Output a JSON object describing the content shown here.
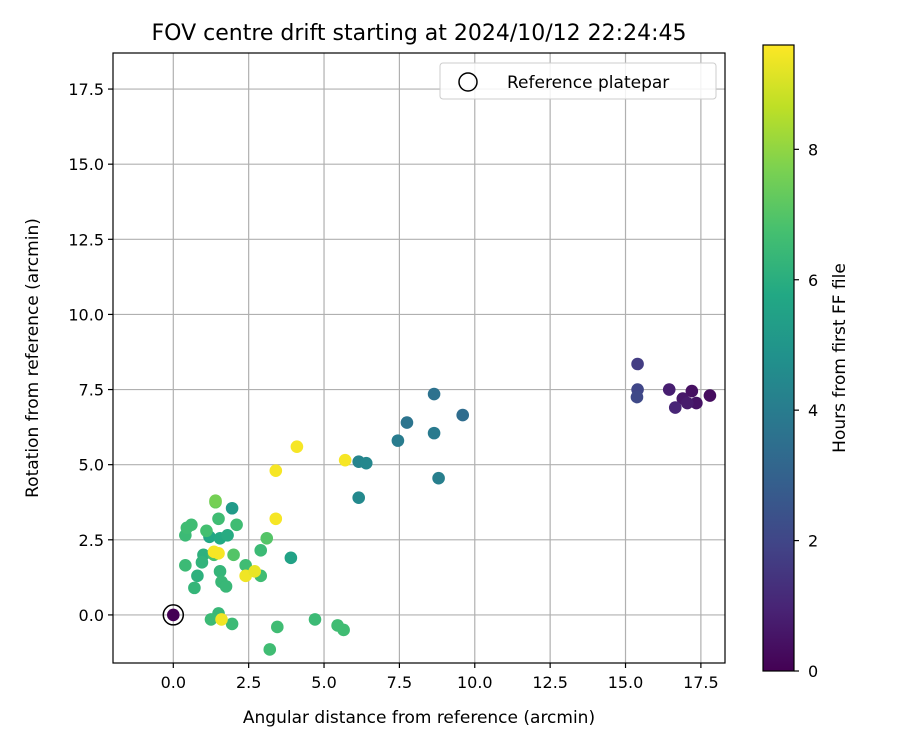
{
  "chart_data": {
    "type": "scatter",
    "title": "FOV centre drift starting at 2024/10/12 22:24:45",
    "xlabel": "Angular distance from reference (arcmin)",
    "ylabel": "Rotation from reference (arcmin)",
    "xlim": [
      -2.0,
      18.3
    ],
    "ylim": [
      -1.6,
      18.7
    ],
    "xticks": [
      0.0,
      2.5,
      5.0,
      7.5,
      10.0,
      12.5,
      15.0,
      17.5
    ],
    "xtick_labels": [
      "0.0",
      "2.5",
      "5.0",
      "7.5",
      "10.0",
      "12.5",
      "15.0",
      "17.5"
    ],
    "yticks": [
      0.0,
      2.5,
      5.0,
      7.5,
      10.0,
      12.5,
      15.0,
      17.5
    ],
    "ytick_labels": [
      "0.0",
      "2.5",
      "5.0",
      "7.5",
      "10.0",
      "12.5",
      "15.0",
      "17.5"
    ],
    "grid": true,
    "legend": {
      "position": "top-right",
      "entries": [
        "Reference platepar"
      ]
    },
    "reference_point": {
      "x": 0.0,
      "y": 0.0,
      "label": "Reference platepar"
    },
    "colorbar": {
      "label": "Hours from first FF file",
      "colormap": "viridis",
      "range": [
        0,
        9.6
      ],
      "ticks": [
        0,
        2,
        4,
        6,
        8
      ],
      "tick_labels": [
        "0",
        "2",
        "4",
        "6",
        "8"
      ]
    },
    "points": [
      {
        "x": 0.0,
        "y": 0.0,
        "c": 0.0
      },
      {
        "x": 17.8,
        "y": 7.3,
        "c": 0.3
      },
      {
        "x": 17.2,
        "y": 7.45,
        "c": 0.4
      },
      {
        "x": 17.35,
        "y": 7.05,
        "c": 0.5
      },
      {
        "x": 16.9,
        "y": 7.2,
        "c": 0.6
      },
      {
        "x": 17.05,
        "y": 7.05,
        "c": 0.7
      },
      {
        "x": 16.45,
        "y": 7.5,
        "c": 0.8
      },
      {
        "x": 16.65,
        "y": 6.9,
        "c": 1.0
      },
      {
        "x": 15.4,
        "y": 8.35,
        "c": 1.7
      },
      {
        "x": 15.4,
        "y": 7.5,
        "c": 2.0
      },
      {
        "x": 15.38,
        "y": 7.25,
        "c": 2.1
      },
      {
        "x": 9.6,
        "y": 6.65,
        "c": 3.4
      },
      {
        "x": 8.65,
        "y": 7.35,
        "c": 3.6
      },
      {
        "x": 7.75,
        "y": 6.4,
        "c": 3.7
      },
      {
        "x": 8.65,
        "y": 6.05,
        "c": 3.9
      },
      {
        "x": 7.45,
        "y": 5.8,
        "c": 4.0
      },
      {
        "x": 8.8,
        "y": 4.55,
        "c": 4.1
      },
      {
        "x": 6.15,
        "y": 5.1,
        "c": 4.3
      },
      {
        "x": 6.4,
        "y": 5.05,
        "c": 4.4
      },
      {
        "x": 6.15,
        "y": 3.9,
        "c": 4.5
      },
      {
        "x": 1.95,
        "y": 3.55,
        "c": 5.2
      },
      {
        "x": 3.9,
        "y": 1.9,
        "c": 5.5
      },
      {
        "x": 1.2,
        "y": 2.6,
        "c": 5.7
      },
      {
        "x": 1.55,
        "y": 2.55,
        "c": 5.8
      },
      {
        "x": 1.8,
        "y": 2.65,
        "c": 5.9
      },
      {
        "x": 1.45,
        "y": 2.05,
        "c": 6.0
      },
      {
        "x": 1.0,
        "y": 2.0,
        "c": 6.1
      },
      {
        "x": 0.95,
        "y": 1.75,
        "c": 6.2
      },
      {
        "x": 0.8,
        "y": 1.3,
        "c": 6.1
      },
      {
        "x": 0.7,
        "y": 0.9,
        "c": 6.3
      },
      {
        "x": 1.55,
        "y": 1.45,
        "c": 6.3
      },
      {
        "x": 1.6,
        "y": 1.1,
        "c": 6.4
      },
      {
        "x": 1.75,
        "y": 0.95,
        "c": 6.4
      },
      {
        "x": 1.5,
        "y": 0.05,
        "c": 6.4
      },
      {
        "x": 1.25,
        "y": -0.15,
        "c": 6.5
      },
      {
        "x": 1.95,
        "y": -0.3,
        "c": 6.5
      },
      {
        "x": 2.1,
        "y": 3.0,
        "c": 6.6
      },
      {
        "x": 2.4,
        "y": 1.65,
        "c": 6.6
      },
      {
        "x": 2.9,
        "y": 2.15,
        "c": 6.5
      },
      {
        "x": 2.9,
        "y": 1.3,
        "c": 6.6
      },
      {
        "x": 3.1,
        "y": 2.55,
        "c": 7.0
      },
      {
        "x": 3.45,
        "y": -0.4,
        "c": 6.6
      },
      {
        "x": 3.2,
        "y": -1.15,
        "c": 6.6
      },
      {
        "x": 4.7,
        "y": -0.15,
        "c": 6.5
      },
      {
        "x": 5.45,
        "y": -0.35,
        "c": 6.6
      },
      {
        "x": 5.65,
        "y": -0.5,
        "c": 6.6
      },
      {
        "x": 0.4,
        "y": 1.65,
        "c": 6.5
      },
      {
        "x": 0.4,
        "y": 2.65,
        "c": 6.5
      },
      {
        "x": 0.45,
        "y": 2.9,
        "c": 6.6
      },
      {
        "x": 0.6,
        "y": 3.0,
        "c": 6.6
      },
      {
        "x": 1.5,
        "y": 3.2,
        "c": 6.6
      },
      {
        "x": 1.1,
        "y": 2.8,
        "c": 6.7
      },
      {
        "x": 1.35,
        "y": 2.0,
        "c": 6.8
      },
      {
        "x": 2.0,
        "y": 2.0,
        "c": 7.0
      },
      {
        "x": 1.4,
        "y": 3.75,
        "c": 7.4
      },
      {
        "x": 1.4,
        "y": 3.8,
        "c": 7.6
      },
      {
        "x": 1.5,
        "y": 2.05,
        "c": 9.5
      },
      {
        "x": 1.35,
        "y": 2.1,
        "c": 9.5
      },
      {
        "x": 1.6,
        "y": -0.15,
        "c": 9.4
      },
      {
        "x": 2.4,
        "y": 1.3,
        "c": 9.4
      },
      {
        "x": 2.7,
        "y": 1.45,
        "c": 9.3
      },
      {
        "x": 3.4,
        "y": 3.2,
        "c": 9.5
      },
      {
        "x": 3.4,
        "y": 4.8,
        "c": 9.5
      },
      {
        "x": 4.1,
        "y": 5.6,
        "c": 9.5
      },
      {
        "x": 5.7,
        "y": 5.15,
        "c": 9.5
      }
    ]
  }
}
